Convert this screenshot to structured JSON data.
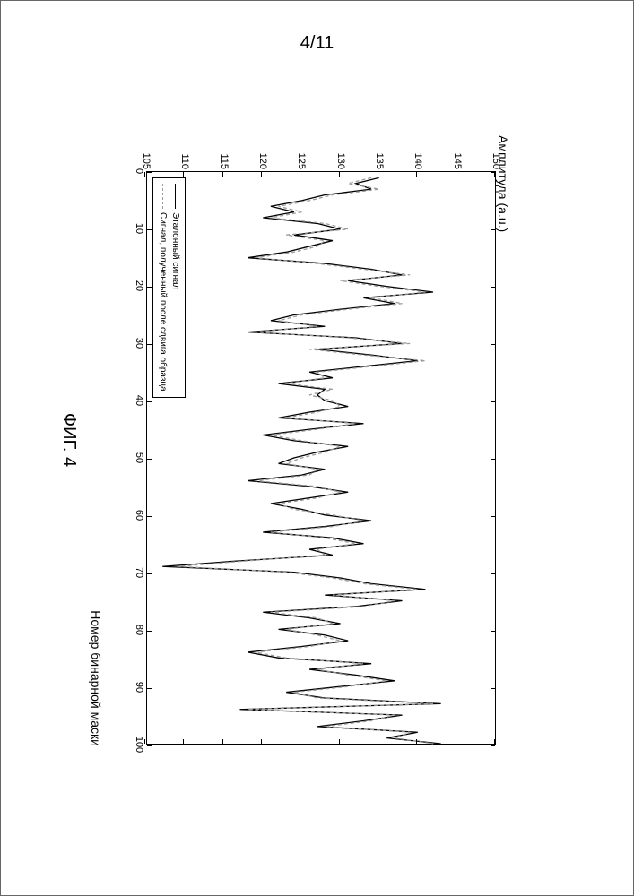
{
  "page": {
    "number_label": "4/11"
  },
  "figure": {
    "caption": "ФИГ. 4",
    "type": "line",
    "ylabel": "Амплитуда (a.u.)",
    "xlabel": "Номер бинарной маски",
    "label_fontsize": 14,
    "tick_fontsize": 11,
    "background_color": "#ffffff",
    "axis_color": "#000000",
    "xlim": [
      0,
      100
    ],
    "ylim": [
      105,
      150
    ],
    "xtick_step": 10,
    "ytick_step": 5,
    "xticks": [
      0,
      10,
      20,
      30,
      40,
      50,
      60,
      70,
      80,
      90,
      100
    ],
    "yticks": [
      105,
      110,
      115,
      120,
      125,
      130,
      135,
      140,
      145,
      150
    ],
    "legend": {
      "position": "bottom-left",
      "items": [
        {
          "label": "Эталонный сигнал",
          "color": "#000000",
          "dash": "solid",
          "width": 1.3
        },
        {
          "label": "Сигнал, полученный после сдвига образца",
          "color": "#9a9a9a",
          "dash": "4,3",
          "width": 1.3
        }
      ]
    },
    "series": [
      {
        "name": "reference",
        "color": "#000000",
        "dash": "none",
        "width": 1.3,
        "x": [
          1,
          2,
          3,
          4,
          5,
          6,
          7,
          8,
          9,
          10,
          11,
          12,
          13,
          14,
          15,
          16,
          17,
          18,
          19,
          20,
          21,
          22,
          23,
          24,
          25,
          26,
          27,
          28,
          29,
          30,
          31,
          32,
          33,
          34,
          35,
          36,
          37,
          38,
          39,
          40,
          41,
          42,
          43,
          44,
          45,
          46,
          47,
          48,
          49,
          50,
          51,
          52,
          53,
          54,
          55,
          56,
          57,
          58,
          59,
          60,
          61,
          62,
          63,
          64,
          65,
          66,
          67,
          68,
          69,
          70,
          71,
          72,
          73,
          74,
          75,
          76,
          77,
          78,
          79,
          80,
          81,
          82,
          83,
          84,
          85,
          86,
          87,
          88,
          89,
          90,
          91,
          92,
          93,
          94,
          95,
          96,
          97,
          98,
          99,
          100
        ],
        "y": [
          135,
          132,
          134,
          128,
          125,
          121,
          124,
          120,
          127,
          130,
          124,
          129,
          126,
          123,
          118,
          128,
          134,
          138,
          131,
          136,
          142,
          133,
          137,
          130,
          124,
          121,
          128,
          118,
          132,
          138,
          127,
          134,
          140,
          133,
          126,
          129,
          122,
          128,
          127,
          128,
          131,
          126,
          122,
          133,
          126,
          120,
          124,
          131,
          127,
          124,
          122,
          128,
          125,
          118,
          126,
          131,
          126,
          121,
          125,
          128,
          134,
          128,
          120,
          129,
          133,
          126,
          129,
          117,
          107,
          124,
          130,
          134,
          141,
          128,
          138,
          132,
          120,
          126,
          130,
          122,
          128,
          131,
          125,
          118,
          122,
          134,
          126,
          132,
          137,
          130,
          123,
          128,
          143,
          117,
          138,
          133,
          127,
          140,
          136,
          143
        ]
      },
      {
        "name": "shifted",
        "color": "#9a9a9a",
        "dash": "4,3",
        "width": 1.3,
        "x": [
          1,
          2,
          3,
          4,
          5,
          6,
          7,
          8,
          9,
          10,
          11,
          12,
          13,
          14,
          15,
          16,
          17,
          18,
          19,
          20,
          21,
          22,
          23,
          24,
          25,
          26,
          27,
          28,
          29,
          30,
          31,
          32,
          33,
          34,
          35,
          36,
          37,
          38,
          39,
          40,
          41,
          42,
          43,
          44,
          45,
          46,
          47,
          48,
          49,
          50,
          51,
          52,
          53,
          54,
          55,
          56,
          57,
          58,
          59,
          60,
          61,
          62,
          63,
          64,
          65,
          66,
          67,
          68,
          69,
          70,
          71,
          72,
          73,
          74,
          75,
          76,
          77,
          78,
          79,
          80,
          81,
          82,
          83,
          84,
          85,
          86,
          87,
          88,
          89,
          90,
          91,
          92,
          93,
          94,
          95,
          96,
          97,
          98,
          99,
          100
        ],
        "y": [
          134,
          131,
          135,
          129,
          126,
          122,
          125,
          121,
          128,
          131,
          123,
          128,
          127,
          124,
          119,
          127,
          133,
          139,
          130,
          135,
          141,
          134,
          138,
          131,
          125,
          122,
          127,
          119,
          131,
          139,
          126,
          133,
          141,
          134,
          127,
          128,
          123,
          129,
          126,
          129,
          130,
          127,
          123,
          132,
          127,
          121,
          125,
          130,
          128,
          125,
          123,
          127,
          126,
          119,
          127,
          130,
          127,
          122,
          124,
          129,
          133,
          129,
          121,
          128,
          132,
          127,
          128,
          118,
          109,
          123,
          129,
          133,
          140,
          129,
          137,
          133,
          121,
          127,
          129,
          123,
          127,
          130,
          126,
          119,
          123,
          133,
          127,
          131,
          136,
          131,
          124,
          127,
          142,
          118,
          137,
          134,
          128,
          139,
          137,
          142
        ]
      }
    ]
  }
}
